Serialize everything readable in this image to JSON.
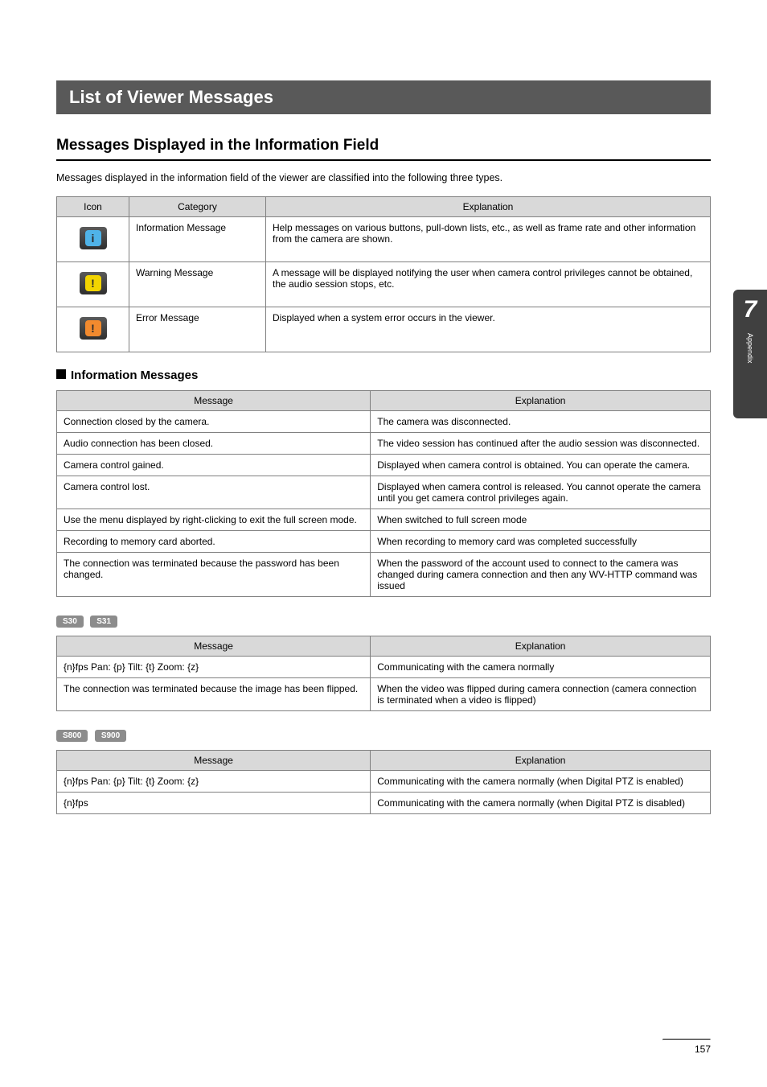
{
  "main_heading": "List of Viewer Messages",
  "section_heading": "Messages Displayed in the Information Field",
  "intro_text": "Messages displayed in the information field of the viewer are classified into the following three types.",
  "icon_table": {
    "headers": [
      "Icon",
      "Category",
      "Explanation"
    ],
    "rows": [
      {
        "icon_bg": "#4fb3e8",
        "icon_glyph": "i",
        "category": "Information Message",
        "explanation": "Help messages on various buttons, pull-down lists, etc., as well as frame rate and other information from the camera are shown."
      },
      {
        "icon_bg": "#f2d400",
        "icon_glyph": "!",
        "category": "Warning Message",
        "explanation": "A message will be displayed notifying the user when camera control privileges cannot be obtained, the audio session stops, etc."
      },
      {
        "icon_bg": "#f28a2e",
        "icon_glyph": "!",
        "category": "Error Message",
        "explanation": "Displayed when a system error occurs in the viewer."
      }
    ]
  },
  "sub_heading": "Information Messages",
  "info_table": {
    "headers": [
      "Message",
      "Explanation"
    ],
    "rows": [
      [
        "Connection closed by the camera.",
        "The camera was disconnected."
      ],
      [
        "Audio connection has been closed.",
        "The video session has continued after the audio session was disconnected."
      ],
      [
        "Camera control gained.",
        "Displayed when camera control is obtained. You can operate the camera."
      ],
      [
        "Camera control lost.",
        "Displayed when camera control is released. You cannot operate the camera until you get camera control privileges again."
      ],
      [
        "Use the menu displayed by right-clicking to exit the full screen mode.",
        "When switched to full screen mode"
      ],
      [
        "Recording to memory card aborted.",
        "When recording to memory card was completed successfully"
      ],
      [
        "The connection was terminated because the password has been changed.",
        "When the password of the account used to connect to the camera was changed during camera connection and then any WV-HTTP command was issued"
      ]
    ]
  },
  "badges_a": [
    "S30",
    "S31"
  ],
  "table_a": {
    "headers": [
      "Message",
      "Explanation"
    ],
    "rows": [
      [
        "{n}fps Pan: {p} Tilt: {t} Zoom: {z}",
        "Communicating with the camera normally"
      ],
      [
        "The connection was terminated because the image has been flipped.",
        "When the video was flipped during camera connection (camera connection is terminated when a video is flipped)"
      ]
    ]
  },
  "badges_b": [
    "S800",
    "S900"
  ],
  "table_b": {
    "headers": [
      "Message",
      "Explanation"
    ],
    "rows": [
      [
        "{n}fps Pan: {p} Tilt: {t} Zoom: {z}",
        "Communicating with the camera normally (when Digital PTZ is enabled)"
      ],
      [
        "{n}fps",
        "Communicating with the camera normally (when Digital PTZ is disabled)"
      ]
    ]
  },
  "side_tab": {
    "number": "7",
    "label": "Appendix"
  },
  "page_number": "157"
}
